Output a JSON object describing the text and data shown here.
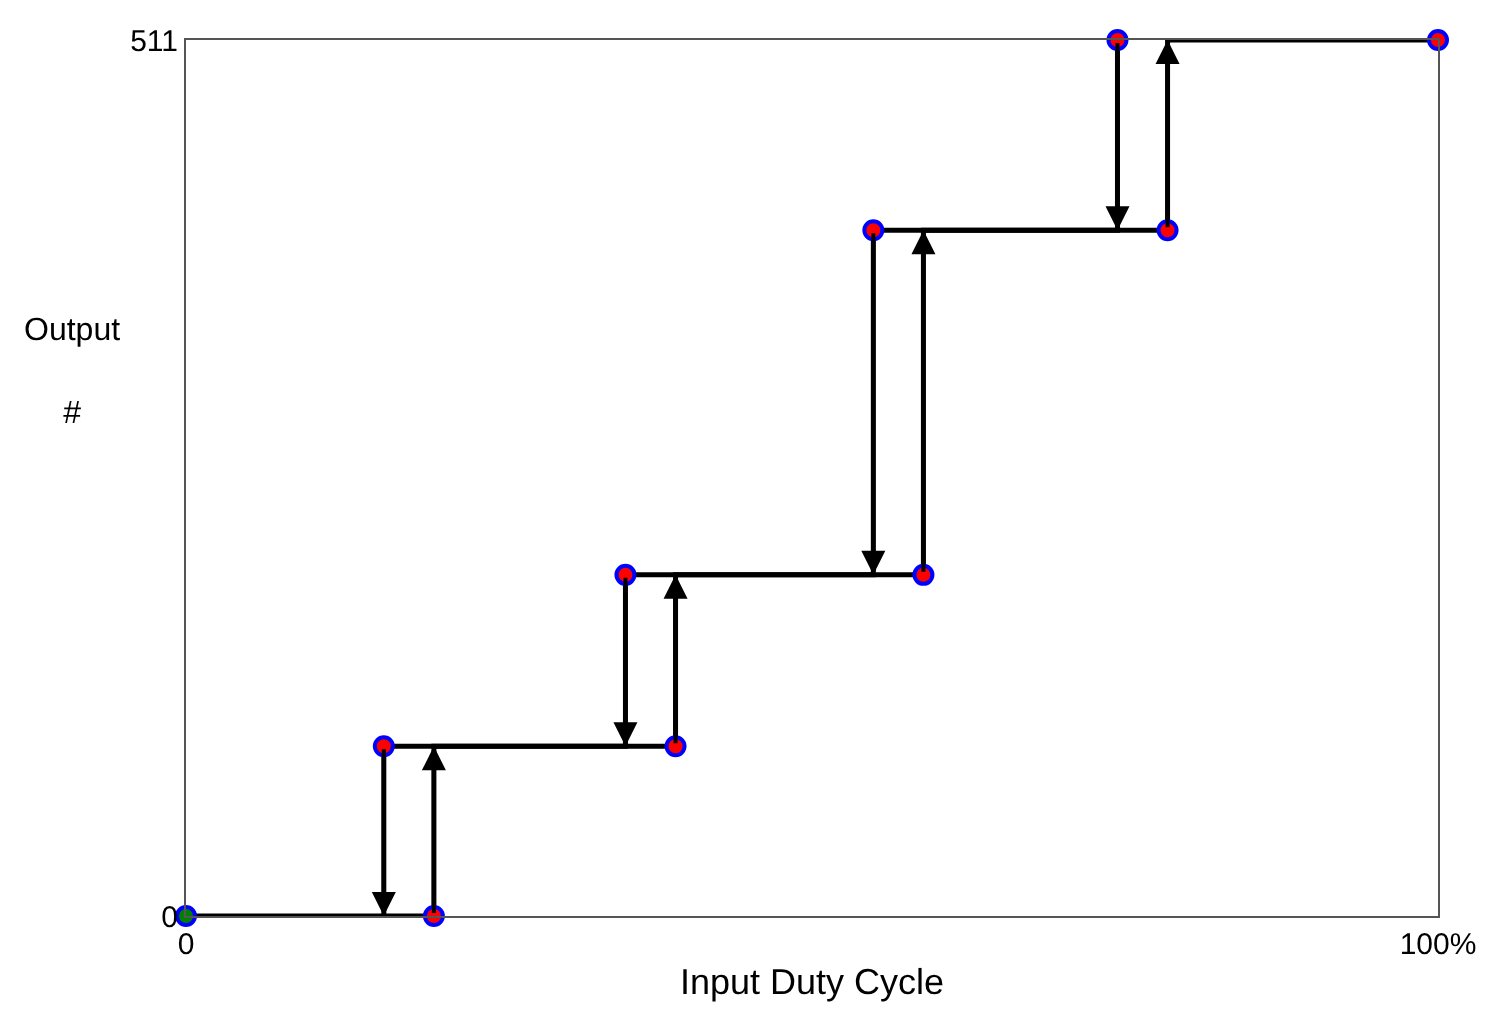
{
  "chart_data": {
    "type": "line",
    "xlabel": "Input Duty Cycle",
    "ylabel": "Output\n#",
    "series": [
      {
        "color": "#000000",
        "x": [
          0,
          19.8,
          19.8,
          39.1,
          39.1,
          58.9,
          58.9,
          78.4,
          78.4,
          100
        ],
        "values": [
          0,
          0,
          99,
          99,
          199,
          199,
          400,
          400,
          511,
          511
        ],
        "marker": "none"
      },
      {
        "color": "#000000",
        "x": [
          74.4,
          74.4,
          54.9,
          54.9,
          35.1,
          35.1,
          15.8,
          15.8
        ],
        "values": [
          511,
          400,
          400,
          199,
          199,
          99,
          99,
          0
        ],
        "marker": "none"
      },
      {
        "type": "scatter",
        "color": "#0000ff",
        "colors": [
          "#008000",
          "#ff0000",
          "#ff0000",
          "#ff0000",
          "#ff0000",
          "#ff0000",
          "#ff0000",
          "#ff0000",
          "#ff0000",
          "#ff0000"
        ],
        "x": [
          0,
          19.8,
          15.8,
          39.1,
          35.1,
          58.9,
          54.9,
          78.4,
          74.4,
          100
        ],
        "values": [
          0,
          0,
          99,
          99,
          199,
          199,
          400,
          400,
          511,
          511
        ],
        "marker": "circle"
      }
    ],
    "xlim": [
      0,
      100
    ],
    "xticks": [
      0,
      {
        "value": 100,
        "label": "100%"
      }
    ],
    "ylim": [
      0,
      511
    ],
    "yticks": [
      0,
      511
    ]
  }
}
